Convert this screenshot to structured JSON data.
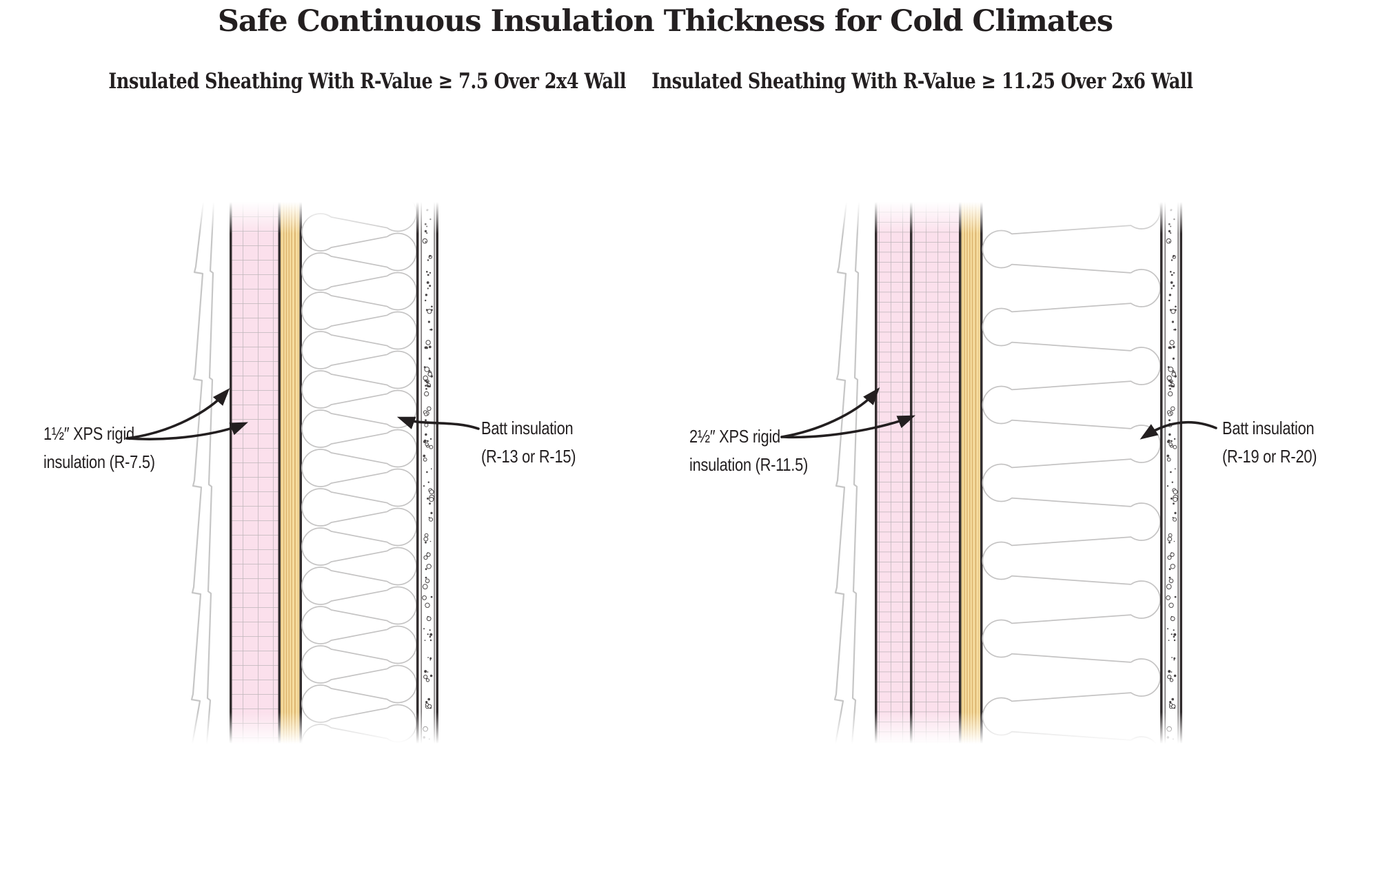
{
  "title": "Safe Continuous Insulation Thickness for Cold Climates",
  "diagrams": [
    {
      "subtitle": [
        "Insulated Sheathing With",
        "R-Value ≥ 7.5 Over 2x4 Wall"
      ],
      "xps_label": [
        "1½″ XPS rigid",
        "insulation (R-7.5)"
      ],
      "batt_label": [
        "Batt insulation",
        "(R-13 or R-15)"
      ]
    },
    {
      "subtitle": [
        "Insulated Sheathing With",
        "R-Value ≥ 11.25 Over 2x6 Wall"
      ],
      "xps_label": [
        "2½″ XPS rigid",
        "insulation (R-11.5)"
      ],
      "batt_label": [
        "Batt insulation",
        "(R-19 or R-20)"
      ]
    }
  ],
  "colors": {
    "text": "#231f20",
    "xps_pink": "#fbe0ec",
    "grid_line": "#aeaaad",
    "osb_tan": "#f6dda0",
    "osb_grain": "#dbb26c",
    "outline": "#332e2f",
    "batt_line": "#c4c3c3",
    "siding": "#c6c6c6",
    "stipple": "#4a4647"
  }
}
